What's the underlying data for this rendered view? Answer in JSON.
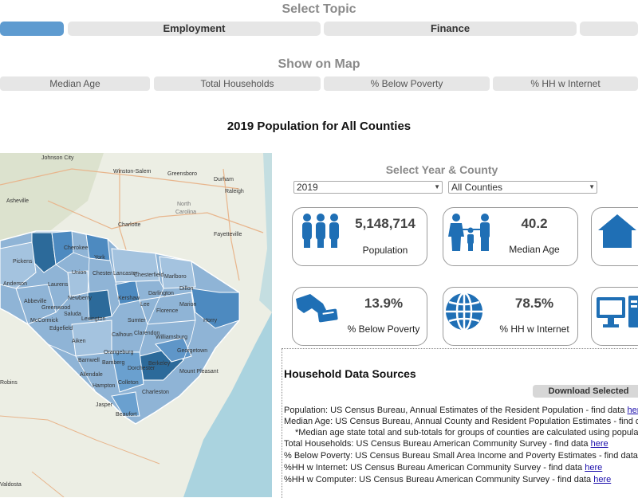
{
  "topic": {
    "title": "Select Topic",
    "buttons": [
      "",
      "Employment",
      "Finance",
      ""
    ]
  },
  "show_on_map": {
    "title": "Show on Map",
    "buttons": [
      "Median Age",
      "Total Households",
      "% Below Poverty",
      "% HH w Internet"
    ]
  },
  "main_title": "2019 Population for All Counties",
  "selector": {
    "title": "Select Year & County",
    "year": "2019",
    "county": "All Counties"
  },
  "cards": [
    {
      "value": "5,148,714",
      "label": "Population",
      "icon": "people-group-icon"
    },
    {
      "value": "40.2",
      "label": "Median Age",
      "icon": "family-icon"
    },
    {
      "value": "",
      "label": "",
      "icon": "house-icon"
    },
    {
      "value": "13.9%",
      "label": "% Below Poverty",
      "icon": "hand-card-icon"
    },
    {
      "value": "78.5%",
      "label": "% HH w Internet",
      "icon": "globe-icon"
    },
    {
      "value": "",
      "label": "",
      "icon": "computer-icon"
    }
  ],
  "sources": {
    "title": "Household Data Sources",
    "download_label": "Download Selected",
    "link_text": "here",
    "lines": [
      {
        "text": "Population: US Census Bureau, Annual Estimates of the Resident Population - find data ",
        "link": true
      },
      {
        "text": "Median Age: US Census Bureau, Annual County and Resident Population Estimates - find data ",
        "link": true
      },
      {
        "text": "*Median age state total and sub-totals for groups of counties are calculated using popula",
        "link": false
      },
      {
        "text": "Total Households: US Census Bureau American Community Survey - find data ",
        "link": true
      },
      {
        "text": "% Below Poverty: US Census Bureau Small Area Income and Poverty Estimates - find data ",
        "link": true
      },
      {
        "text": "%HH w Internet: US Census Bureau American Community Survey - find data ",
        "link": true
      },
      {
        "text": "%HH w Computer: US Census Bureau American Community Survey - find data ",
        "link": true
      }
    ]
  },
  "map": {
    "cities": [
      "Johnson City",
      "Winston-Salem",
      "Greensboro",
      "Durham",
      "Raleigh",
      "Asheville",
      "North Carolina",
      "Charlotte",
      "Fayetteville",
      "Greenville",
      "Spartanburg",
      "Anderson",
      "Laurens",
      "Newberry",
      "Columbia",
      "Florence",
      "Sumter",
      "Aiken",
      "Orangeburg",
      "Georgetown",
      "Charleston",
      "Beaufort",
      "Horry",
      "Marion",
      "Dillon",
      "Darlington",
      "Chesterfield",
      "Lancaster",
      "Chester",
      "York",
      "Cherokee",
      "Union",
      "Pickens",
      "Oconee",
      "Abbeville",
      "Greenwood",
      "McCormick",
      "Edgefield",
      "Saluda",
      "Lexington",
      "Kershaw",
      "Lee",
      "Calhoun",
      "Clarendon",
      "Williamsburg",
      "Berkeley",
      "Dorchester",
      "Colleton",
      "Hampton",
      "Jasper",
      "Allendale",
      "Barnwell",
      "Bamberg",
      "Robins",
      "Valdosta",
      "Mount Pleasant"
    ]
  },
  "colors": {
    "accent": "#1f77b4",
    "icon_blue": "#1f6fb5",
    "active_topic": "#5e9bd0"
  }
}
